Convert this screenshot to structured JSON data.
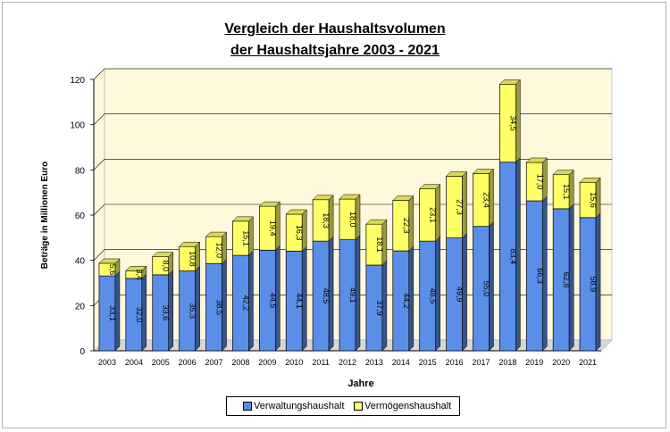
{
  "chart_data": {
    "type": "bar",
    "stacked": true,
    "title_line1": "Vergleich der Haushaltsvolumen",
    "title_line2": "der Haushaltsjahre 2003 - 2021",
    "xlabel": "Jahre",
    "ylabel": "Beträge in Millionen Euro",
    "ylim": [
      0,
      120
    ],
    "yticks": [
      "0",
      "20",
      "40",
      "60",
      "80",
      "100",
      "120"
    ],
    "grid": true,
    "legend_position": "bottom",
    "categories": [
      "2003",
      "2004",
      "2005",
      "2006",
      "2007",
      "2008",
      "2009",
      "2010",
      "2011",
      "2012",
      "2013",
      "2014",
      "2015",
      "2016",
      "2017",
      "2018",
      "2019",
      "2020",
      "2021"
    ],
    "series": [
      {
        "name": "Verwaltungshaushalt",
        "color": "#5b8ee8",
        "values": [
          33.1,
          32.0,
          33.6,
          35.3,
          38.5,
          42.2,
          44.5,
          44.1,
          48.5,
          49.1,
          37.9,
          44.2,
          48.5,
          49.9,
          55.0,
          83.4,
          66.3,
          62.8,
          58.9
        ],
        "labels": [
          "33,1",
          "32,0",
          "33,6",
          "35,3",
          "38,5",
          "42,2",
          "44,5",
          "44,1",
          "48,5",
          "49,1",
          "37,9",
          "44,2",
          "48,5",
          "49,9",
          "55,0",
          "83,4",
          "66,3",
          "62,8",
          "58,9"
        ]
      },
      {
        "name": "Vermögenshaushalt",
        "color": "#ffff66",
        "values": [
          5.6,
          3.4,
          8.0,
          10.8,
          12.0,
          15.1,
          19.4,
          16.3,
          18.3,
          18.0,
          18.1,
          22.3,
          23.1,
          27.3,
          23.4,
          34.5,
          17.0,
          15.1,
          15.6
        ],
        "labels": [
          "5,6",
          "3,4",
          "8,0",
          "10,8",
          "12,0",
          "15,1",
          "19,4",
          "16,3",
          "18,3",
          "18,0",
          "18,1",
          "22,3",
          "23,1",
          "27,3",
          "23,4",
          "34,5",
          "17,0",
          "15,1",
          "15,6"
        ]
      }
    ]
  },
  "colors": {
    "plot_background": "#fff8dc",
    "grid": "#c0b890",
    "bar_top_shade": "#e8e8c0"
  }
}
